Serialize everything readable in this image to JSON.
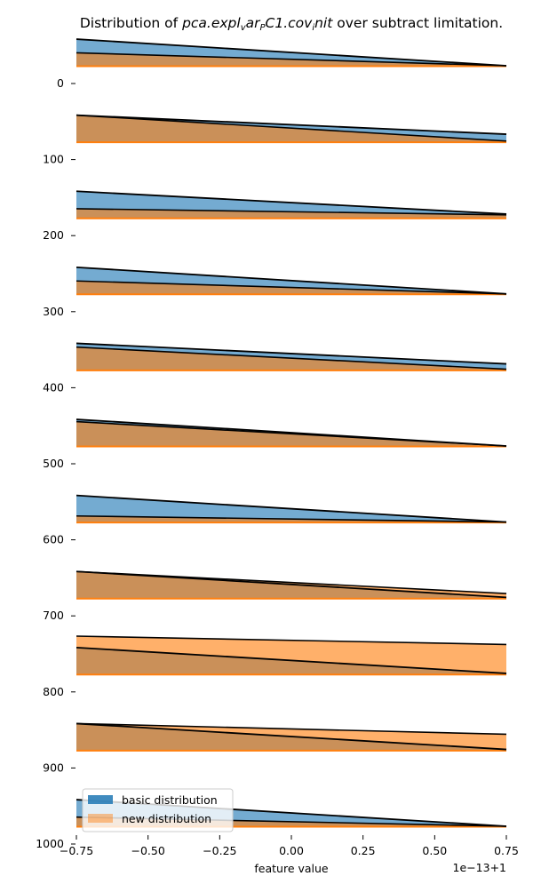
{
  "chart_data": {
    "type": "area",
    "title_prefix": "Distribution of ",
    "title_math": "pca.expl",
    "title_sub1": "v",
    "title_math2": "ar",
    "title_sub2": "P",
    "title_math3": "C1.cov",
    "title_sub3": "i",
    "title_math4": "nit",
    "title_suffix": " over subtract limitation.",
    "xlabel": "feature value",
    "x_offset_label": "1e−13+1",
    "xlim": [
      -0.75,
      0.75
    ],
    "ylim": [
      1000,
      -30
    ],
    "x_ticks": [
      -0.75,
      -0.5,
      -0.25,
      0.0,
      0.25,
      0.5,
      0.75
    ],
    "x_tick_labels": [
      "−0.75",
      "−0.50",
      "−0.25",
      "0.00",
      "0.25",
      "0.50",
      "0.75"
    ],
    "y_ticks": [
      0,
      100,
      200,
      300,
      400,
      500,
      600,
      700,
      800,
      900,
      1000
    ],
    "y_tick_labels": [
      "0",
      "100",
      "200",
      "300",
      "400",
      "500",
      "600",
      "700",
      "800",
      "900",
      "1000"
    ],
    "legend": {
      "placement": "lower-left",
      "entries": [
        {
          "label": "basic distribution",
          "color": "#1f77b4"
        },
        {
          "label": "new distribution",
          "color": "#ff7f0e"
        }
      ]
    },
    "colors": {
      "basic": "#1f77b4",
      "new": "#ff7f0e"
    },
    "ridges": [
      {
        "baseline": 0,
        "basic": [
          -35,
          0
        ],
        "new": [
          -17,
          0
        ]
      },
      {
        "baseline": 100,
        "basic": [
          -35,
          -10
        ],
        "new": [
          -35,
          -1
        ]
      },
      {
        "baseline": 200,
        "basic": [
          -35,
          -5
        ],
        "new": [
          -12,
          -4
        ]
      },
      {
        "baseline": 300,
        "basic": [
          -35,
          0
        ],
        "new": [
          -17,
          0
        ]
      },
      {
        "baseline": 400,
        "basic": [
          -35,
          -8
        ],
        "new": [
          -30,
          -1
        ]
      },
      {
        "baseline": 500,
        "basic": [
          -35,
          0
        ],
        "new": [
          -32,
          0
        ]
      },
      {
        "baseline": 600,
        "basic": [
          -35,
          0
        ],
        "new": [
          -8,
          0
        ]
      },
      {
        "baseline": 700,
        "basic": [
          -35,
          -1
        ],
        "new": [
          -35,
          -6
        ]
      },
      {
        "baseline": 800,
        "basic": [
          -35,
          -1
        ],
        "new": [
          -50,
          -39
        ]
      },
      {
        "baseline": 900,
        "basic": [
          -35,
          -1
        ],
        "new": [
          -35,
          -21
        ]
      },
      {
        "baseline": 1000,
        "basic": [
          -35,
          0
        ],
        "new": [
          -12,
          0
        ]
      }
    ]
  }
}
